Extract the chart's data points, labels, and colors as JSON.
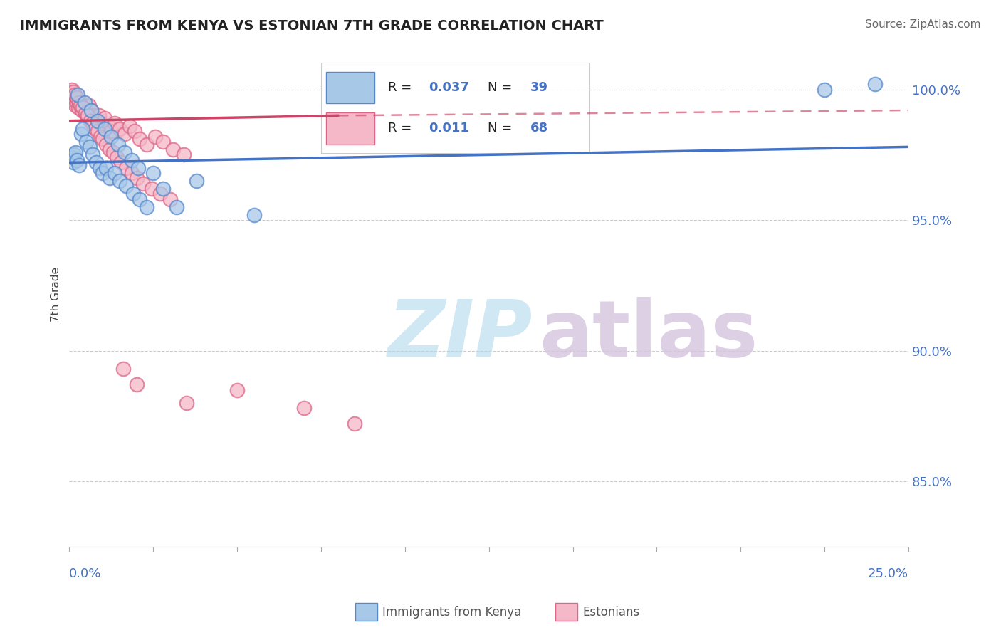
{
  "title": "IMMIGRANTS FROM KENYA VS ESTONIAN 7TH GRADE CORRELATION CHART",
  "source": "Source: ZipAtlas.com",
  "ylabel": "7th Grade",
  "xlim": [
    0.0,
    25.0
  ],
  "ylim": [
    82.5,
    101.8
  ],
  "ytick_values": [
    85.0,
    90.0,
    95.0,
    100.0
  ],
  "blue_R": "0.037",
  "blue_N": "39",
  "pink_R": "0.011",
  "pink_N": "68",
  "blue_color": "#a8c8e8",
  "pink_color": "#f4b8c8",
  "blue_edge_color": "#5588cc",
  "pink_edge_color": "#dd6688",
  "blue_line_color": "#4472c4",
  "pink_line_color": "#cc4466",
  "tick_label_color": "#4472c4",
  "title_color": "#222222",
  "source_color": "#666666",
  "ylabel_color": "#444444",
  "grid_color": "#cccccc",
  "watermark_zip_color": "#d0e8f4",
  "watermark_atlas_color": "#ddd0e4",
  "blue_scatter_x": [
    0.08,
    0.12,
    0.15,
    0.18,
    0.22,
    0.28,
    0.35,
    0.4,
    0.5,
    0.6,
    0.7,
    0.8,
    0.9,
    1.0,
    1.1,
    1.2,
    1.35,
    1.5,
    1.7,
    1.9,
    2.1,
    2.3,
    2.5,
    2.8,
    3.2,
    0.25,
    0.45,
    0.65,
    0.85,
    1.05,
    1.25,
    1.45,
    1.65,
    1.85,
    2.05,
    3.8,
    5.5,
    22.5,
    24.0
  ],
  "blue_scatter_y": [
    97.4,
    97.2,
    97.5,
    97.6,
    97.3,
    97.1,
    98.3,
    98.5,
    98.0,
    97.8,
    97.5,
    97.2,
    97.0,
    96.8,
    97.0,
    96.6,
    96.8,
    96.5,
    96.3,
    96.0,
    95.8,
    95.5,
    96.8,
    96.2,
    95.5,
    99.8,
    99.5,
    99.2,
    98.8,
    98.5,
    98.2,
    97.9,
    97.6,
    97.3,
    97.0,
    96.5,
    95.2,
    100.0,
    100.2
  ],
  "pink_scatter_x": [
    0.05,
    0.08,
    0.1,
    0.12,
    0.15,
    0.18,
    0.2,
    0.23,
    0.27,
    0.3,
    0.35,
    0.38,
    0.42,
    0.47,
    0.52,
    0.58,
    0.65,
    0.72,
    0.8,
    0.88,
    0.95,
    1.05,
    1.15,
    1.25,
    1.35,
    1.5,
    1.65,
    1.8,
    1.95,
    2.1,
    2.3,
    2.55,
    2.8,
    3.1,
    3.4,
    0.07,
    0.13,
    0.17,
    0.22,
    0.28,
    0.33,
    0.4,
    0.48,
    0.55,
    0.62,
    0.7,
    0.78,
    0.85,
    0.92,
    1.0,
    1.1,
    1.2,
    1.3,
    1.42,
    1.55,
    1.7,
    1.85,
    2.0,
    2.2,
    2.45,
    2.7,
    3.0,
    1.6,
    2.0,
    3.5,
    5.0,
    7.0,
    8.5
  ],
  "pink_scatter_y": [
    99.9,
    99.8,
    99.7,
    99.6,
    99.5,
    99.4,
    99.7,
    99.5,
    99.3,
    99.6,
    99.4,
    99.2,
    99.3,
    99.1,
    99.0,
    99.4,
    99.2,
    99.0,
    98.8,
    99.0,
    98.7,
    98.9,
    98.6,
    98.4,
    98.7,
    98.5,
    98.3,
    98.6,
    98.4,
    98.1,
    97.9,
    98.2,
    98.0,
    97.7,
    97.5,
    100.0,
    99.9,
    99.8,
    99.7,
    99.5,
    99.4,
    99.3,
    99.1,
    99.0,
    98.8,
    98.7,
    98.5,
    98.4,
    98.2,
    98.1,
    97.9,
    97.7,
    97.6,
    97.4,
    97.2,
    97.0,
    96.8,
    96.6,
    96.4,
    96.2,
    96.0,
    95.8,
    89.3,
    88.7,
    88.0,
    88.5,
    87.8,
    87.2
  ],
  "blue_line_x0": 0.0,
  "blue_line_x1": 25.0,
  "blue_line_y0": 97.2,
  "blue_line_y1": 97.8,
  "pink_solid_x0": 0.0,
  "pink_solid_x1": 8.0,
  "pink_solid_y0": 98.8,
  "pink_solid_y1": 99.0,
  "pink_dash_x0": 8.0,
  "pink_dash_x1": 25.0,
  "pink_dash_y0": 99.0,
  "pink_dash_y1": 99.2
}
